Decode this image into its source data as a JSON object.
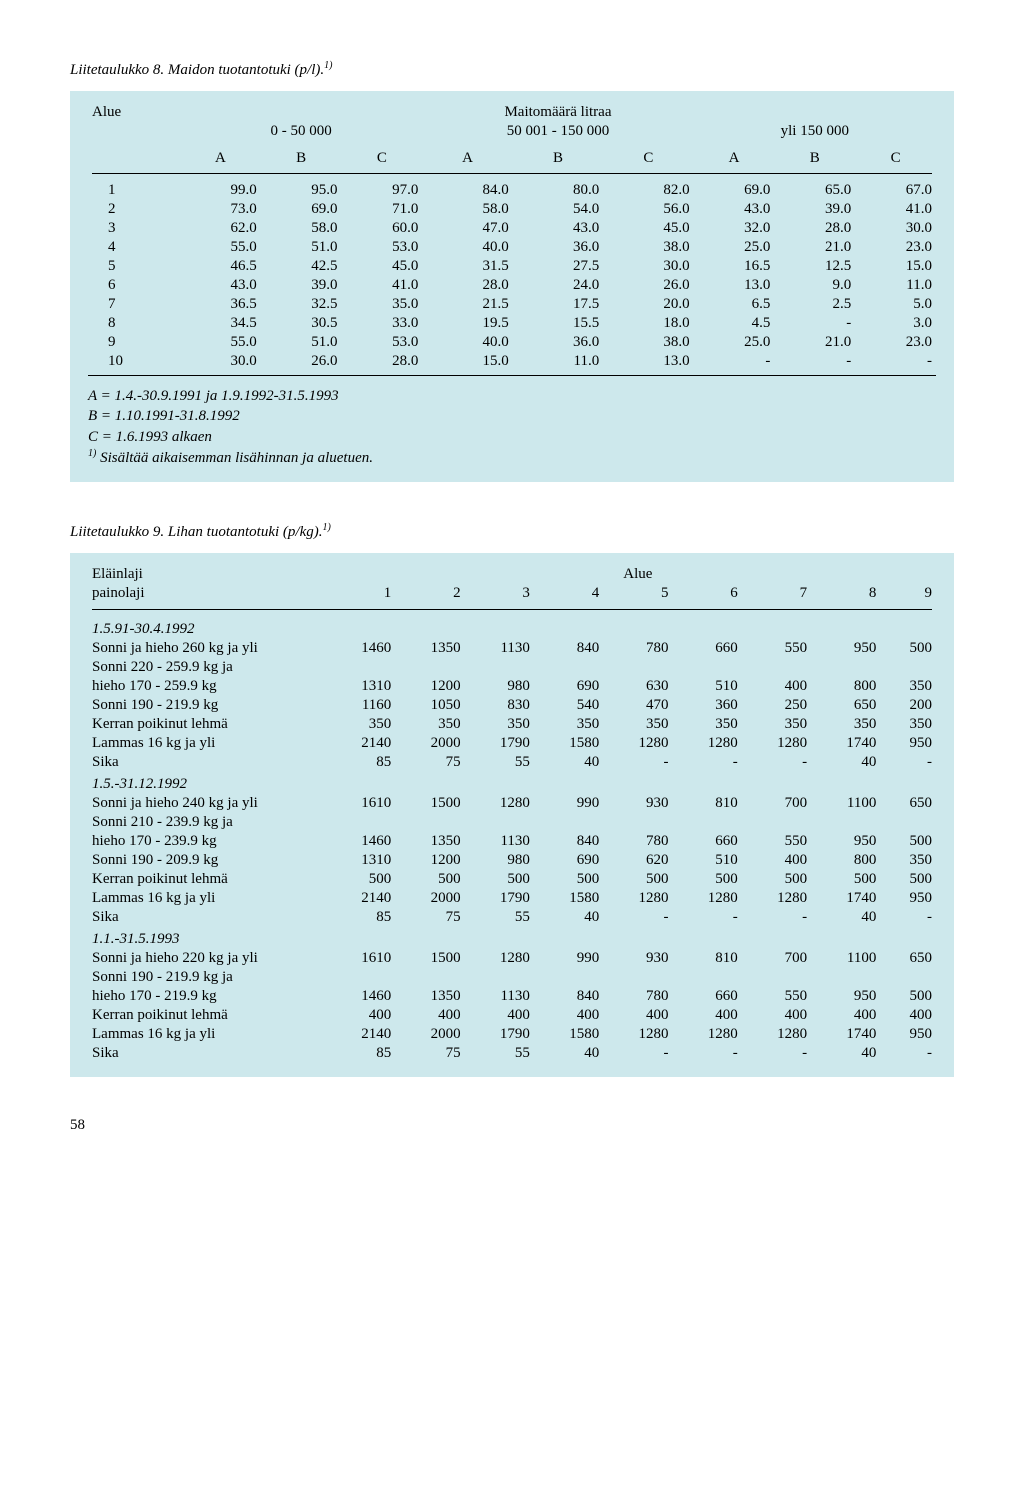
{
  "table8": {
    "caption": "Liitetaulukko 8. Maidon tuotantotuki (p/l).",
    "caption_sup": "1)",
    "header_left": "Alue",
    "header_center": "Maitomäärä litraa",
    "range1": "0 - 50 000",
    "range2": "50 001 - 150 000",
    "range3": "yli 150 000",
    "colA": "A",
    "colB": "B",
    "colC": "C",
    "rows": [
      {
        "n": "1",
        "a1": "99.0",
        "b1": "95.0",
        "c1": "97.0",
        "a2": "84.0",
        "b2": "80.0",
        "c2": "82.0",
        "a3": "69.0",
        "b3": "65.0",
        "c3": "67.0"
      },
      {
        "n": "2",
        "a1": "73.0",
        "b1": "69.0",
        "c1": "71.0",
        "a2": "58.0",
        "b2": "54.0",
        "c2": "56.0",
        "a3": "43.0",
        "b3": "39.0",
        "c3": "41.0"
      },
      {
        "n": "3",
        "a1": "62.0",
        "b1": "58.0",
        "c1": "60.0",
        "a2": "47.0",
        "b2": "43.0",
        "c2": "45.0",
        "a3": "32.0",
        "b3": "28.0",
        "c3": "30.0"
      },
      {
        "n": "4",
        "a1": "55.0",
        "b1": "51.0",
        "c1": "53.0",
        "a2": "40.0",
        "b2": "36.0",
        "c2": "38.0",
        "a3": "25.0",
        "b3": "21.0",
        "c3": "23.0"
      },
      {
        "n": "5",
        "a1": "46.5",
        "b1": "42.5",
        "c1": "45.0",
        "a2": "31.5",
        "b2": "27.5",
        "c2": "30.0",
        "a3": "16.5",
        "b3": "12.5",
        "c3": "15.0"
      },
      {
        "n": "6",
        "a1": "43.0",
        "b1": "39.0",
        "c1": "41.0",
        "a2": "28.0",
        "b2": "24.0",
        "c2": "26.0",
        "a3": "13.0",
        "b3": "9.0",
        "c3": "11.0"
      },
      {
        "n": "7",
        "a1": "36.5",
        "b1": "32.5",
        "c1": "35.0",
        "a2": "21.5",
        "b2": "17.5",
        "c2": "20.0",
        "a3": "6.5",
        "b3": "2.5",
        "c3": "5.0"
      },
      {
        "n": "8",
        "a1": "34.5",
        "b1": "30.5",
        "c1": "33.0",
        "a2": "19.5",
        "b2": "15.5",
        "c2": "18.0",
        "a3": "4.5",
        "b3": "-",
        "c3": "3.0"
      },
      {
        "n": "9",
        "a1": "55.0",
        "b1": "51.0",
        "c1": "53.0",
        "a2": "40.0",
        "b2": "36.0",
        "c2": "38.0",
        "a3": "25.0",
        "b3": "21.0",
        "c3": "23.0"
      },
      {
        "n": "10",
        "a1": "30.0",
        "b1": "26.0",
        "c1": "28.0",
        "a2": "15.0",
        "b2": "11.0",
        "c2": "13.0",
        "a3": "-",
        "b3": "-",
        "c3": "-"
      }
    ],
    "note1": "A = 1.4.-30.9.1991 ja 1.9.1992-31.5.1993",
    "note2": "B = 1.10.1991-31.8.1992",
    "note3": "C = 1.6.1993 alkaen",
    "note4_sup": "1)",
    "note4": " Sisältää aikaisemman lisähinnan ja aluetuen."
  },
  "table9": {
    "caption": "Liitetaulukko 9. Lihan tuotantotuki (p/kg).",
    "caption_sup": "1)",
    "hdr_left1": "Eläinlaji",
    "hdr_left2": "painolaji",
    "hdr_center": "Alue",
    "cols": [
      "1",
      "2",
      "3",
      "4",
      "5",
      "6",
      "7",
      "8",
      "9"
    ],
    "sections": [
      {
        "title": "1.5.91-30.4.1992",
        "rows": [
          {
            "label": "Sonni ja hieho 260 kg ja yli",
            "v": [
              "1460",
              "1350",
              "1130",
              "840",
              "780",
              "660",
              "550",
              "950",
              "500"
            ]
          },
          {
            "label": "Sonni 220 - 259.9 kg ja",
            "v": [
              "",
              "",
              "",
              "",
              "",
              "",
              "",
              "",
              ""
            ]
          },
          {
            "label": "hieho 170 - 259.9 kg",
            "v": [
              "1310",
              "1200",
              "980",
              "690",
              "630",
              "510",
              "400",
              "800",
              "350"
            ]
          },
          {
            "label": "Sonni 190 - 219.9 kg",
            "v": [
              "1160",
              "1050",
              "830",
              "540",
              "470",
              "360",
              "250",
              "650",
              "200"
            ]
          },
          {
            "label": "Kerran poikinut lehmä",
            "v": [
              "350",
              "350",
              "350",
              "350",
              "350",
              "350",
              "350",
              "350",
              "350"
            ]
          },
          {
            "label": "Lammas 16 kg ja yli",
            "v": [
              "2140",
              "2000",
              "1790",
              "1580",
              "1280",
              "1280",
              "1280",
              "1740",
              "950"
            ]
          },
          {
            "label": "Sika",
            "v": [
              "85",
              "75",
              "55",
              "40",
              "-",
              "-",
              "-",
              "40",
              "-"
            ]
          }
        ]
      },
      {
        "title": "1.5.-31.12.1992",
        "rows": [
          {
            "label": "Sonni ja hieho 240 kg ja yli",
            "v": [
              "1610",
              "1500",
              "1280",
              "990",
              "930",
              "810",
              "700",
              "1100",
              "650"
            ]
          },
          {
            "label": "Sonni 210 - 239.9 kg ja",
            "v": [
              "",
              "",
              "",
              "",
              "",
              "",
              "",
              "",
              ""
            ]
          },
          {
            "label": "hieho 170 - 239.9 kg",
            "v": [
              "1460",
              "1350",
              "1130",
              "840",
              "780",
              "660",
              "550",
              "950",
              "500"
            ]
          },
          {
            "label": "Sonni 190 - 209.9 kg",
            "v": [
              "1310",
              "1200",
              "980",
              "690",
              "620",
              "510",
              "400",
              "800",
              "350"
            ]
          },
          {
            "label": "Kerran poikinut lehmä",
            "v": [
              "500",
              "500",
              "500",
              "500",
              "500",
              "500",
              "500",
              "500",
              "500"
            ]
          },
          {
            "label": "Lammas 16 kg ja yli",
            "v": [
              "2140",
              "2000",
              "1790",
              "1580",
              "1280",
              "1280",
              "1280",
              "1740",
              "950"
            ]
          },
          {
            "label": "Sika",
            "v": [
              "85",
              "75",
              "55",
              "40",
              "-",
              "-",
              "-",
              "40",
              "-"
            ]
          }
        ]
      },
      {
        "title": "1.1.-31.5.1993",
        "rows": [
          {
            "label": "Sonni ja hieho 220 kg ja yli",
            "v": [
              "1610",
              "1500",
              "1280",
              "990",
              "930",
              "810",
              "700",
              "1100",
              "650"
            ]
          },
          {
            "label": "Sonni 190 - 219.9 kg ja",
            "v": [
              "",
              "",
              "",
              "",
              "",
              "",
              "",
              "",
              ""
            ]
          },
          {
            "label": "hieho 170 - 219.9 kg",
            "v": [
              "1460",
              "1350",
              "1130",
              "840",
              "780",
              "660",
              "550",
              "950",
              "500"
            ]
          },
          {
            "label": "Kerran poikinut lehmä",
            "v": [
              "400",
              "400",
              "400",
              "400",
              "400",
              "400",
              "400",
              "400",
              "400"
            ]
          },
          {
            "label": "Lammas 16 kg ja yli",
            "v": [
              "2140",
              "2000",
              "1790",
              "1580",
              "1280",
              "1280",
              "1280",
              "1740",
              "950"
            ]
          },
          {
            "label": "Sika",
            "v": [
              "85",
              "75",
              "55",
              "40",
              "-",
              "-",
              "-",
              "40",
              "-"
            ]
          }
        ]
      }
    ]
  },
  "pagenum": "58"
}
